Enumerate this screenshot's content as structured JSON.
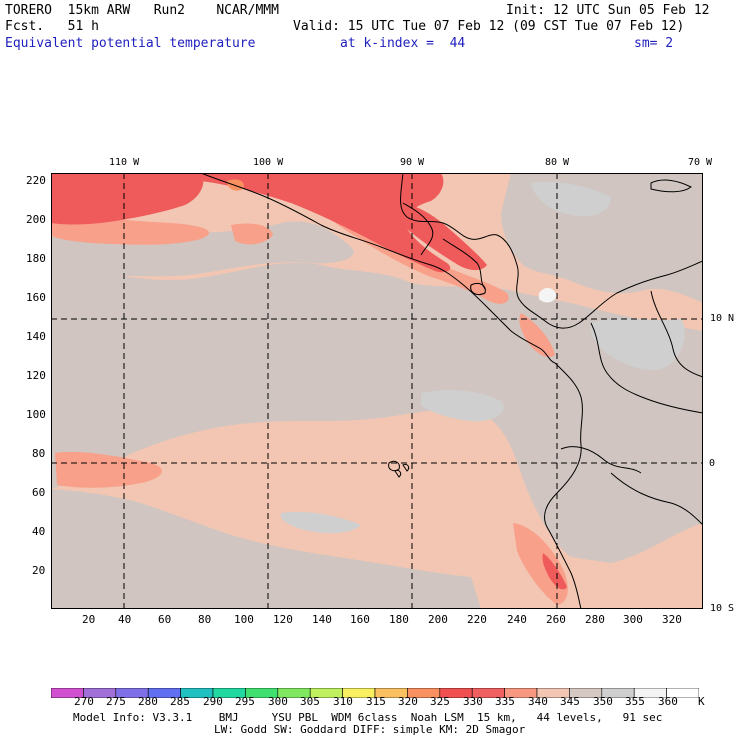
{
  "header": {
    "model": "TORERO  15km ARW   Run2    NCAR/MMM",
    "init": "Init: 12 UTC Sun 05 Feb 12",
    "fcst": "Fcst.   51 h",
    "valid": "Valid: 15 UTC Tue 07 Feb 12 (09 CST Tue 07 Feb 12)",
    "field": "Equivalent potential temperature",
    "level": "at k-index =  44",
    "smooth": "sm= 2"
  },
  "map": {
    "top_lon_labels": [
      "110 W",
      "100 W",
      "90 W",
      "80 W",
      "70 W"
    ],
    "right_lat_labels": [
      "10 N",
      "0",
      "10 S"
    ],
    "left_y_ticks": [
      "220",
      "200",
      "180",
      "160",
      "140",
      "120",
      "100",
      "80",
      "60",
      "40",
      "20"
    ],
    "bottom_x_ticks": [
      "20",
      "40",
      "60",
      "80",
      "100",
      "120",
      "140",
      "160",
      "180",
      "200",
      "220",
      "240",
      "260",
      "280",
      "300",
      "320"
    ],
    "colors": {
      "land_bg": "#f2c6b2",
      "gray": "#d0c5c1",
      "lightgray": "#cfcfcf",
      "hot": "#ef5a5a",
      "warm": "#f8a08a",
      "coast": "#000000",
      "grid": "#000000"
    }
  },
  "colorbar": {
    "labels": [
      "270",
      "275",
      "280",
      "285",
      "290",
      "295",
      "300",
      "305",
      "310",
      "315",
      "320",
      "325",
      "330",
      "335",
      "340",
      "345",
      "350",
      "355",
      "360"
    ],
    "unit": "K",
    "colors": [
      "#d050d0",
      "#a070d8",
      "#8070e8",
      "#6070f0",
      "#20c0c0",
      "#20d8a0",
      "#40e070",
      "#80e860",
      "#c0f060",
      "#f8f060",
      "#f8c060",
      "#f89060",
      "#f05050",
      "#f06060",
      "#f89880",
      "#f2c6b2",
      "#d6c8c2",
      "#cfcfcf",
      "#f4f4f4",
      "#ffffff"
    ]
  },
  "footer": {
    "line1": "Model Info: V3.3.1    BMJ     YSU PBL  WDM 6class  Noah LSM  15 km,   44 levels,   91 sec",
    "line2": "LW: Godd SW: Goddard DIFF: simple KM: 2D Smagor"
  }
}
